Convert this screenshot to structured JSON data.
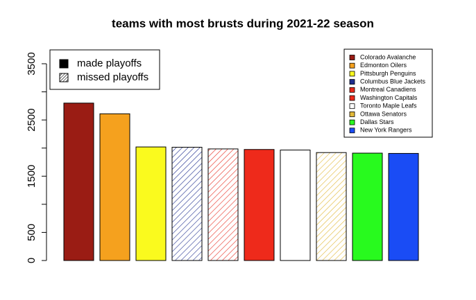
{
  "chart_data": {
    "type": "bar",
    "title": "teams with most brusts during 2021-22 season",
    "categories": [
      "Colorado Avalanche",
      "Edmonton Oilers",
      "Pittsburgh Penguins",
      "Columbus Blue Jackets",
      "Montreal Canadiens",
      "Washington Capitals",
      "Toronto Maple Leafs",
      "Ottawa Senators",
      "Dallas Stars",
      "New York Rangers"
    ],
    "values": [
      2800,
      2610,
      2020,
      2015,
      1985,
      1975,
      1965,
      1920,
      1910,
      1905
    ],
    "colors": [
      "#9a1c14",
      "#f5a11e",
      "#fafa1e",
      "#1f2f8f",
      "#e8291c",
      "#ee2a1b",
      "#ffffff",
      "#e2b93a",
      "#28fa1e",
      "#1a4cf5"
    ],
    "patterns": [
      "solid",
      "solid",
      "solid",
      "hatched",
      "hatched",
      "solid",
      "solid",
      "hatched",
      "solid",
      "solid"
    ],
    "pattern_legend": [
      {
        "name": "made playoffs",
        "pattern": "solid"
      },
      {
        "name": "missed playoffs",
        "pattern": "hatched"
      }
    ],
    "ylim": [
      0,
      3500
    ],
    "yticks": [
      0,
      500,
      {
        "value": 1000,
        "label": null
      },
      1500,
      {
        "value": 2000,
        "label": null
      },
      2500,
      {
        "value": 3000,
        "label": null
      },
      3500
    ]
  }
}
